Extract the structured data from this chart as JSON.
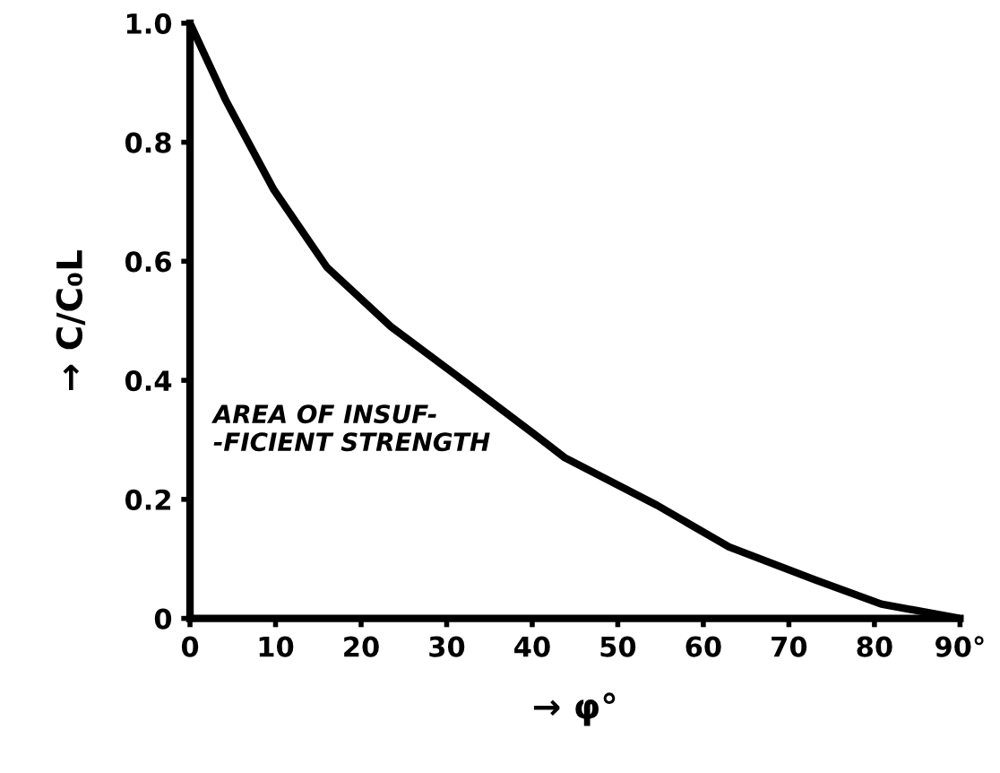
{
  "chart_data": {
    "type": "line",
    "xlabel": "→ φ°",
    "ylabel": "→ C/C₀L",
    "x": [
      0,
      4.2,
      9.8,
      16,
      23.5,
      31.9,
      40.2,
      43.8,
      54.6,
      63,
      73,
      80.8,
      90
    ],
    "series": [
      {
        "color": "#000000",
        "values": [
          1.0,
          0.87,
          0.72,
          0.59,
          0.49,
          0.4,
          0.31,
          0.27,
          0.19,
          0.12,
          0.065,
          0.024,
          0
        ]
      }
    ],
    "xlim": [
      0,
      90
    ],
    "xticks": [
      0,
      10,
      20,
      30,
      40,
      50,
      60,
      70,
      80,
      {
        "value": 90,
        "label": "90°"
      }
    ],
    "ylim": [
      0,
      1.0
    ],
    "yticks": [
      0,
      0.2,
      0.4,
      0.6,
      0.8,
      {
        "value": 1.0,
        "label": "1.0"
      }
    ],
    "annotations": [
      "AREA OF INSUF-\n-FICIENT STRENGTH"
    ],
    "grid": false,
    "legend": false,
    "marker": "none",
    "line_style": "solid"
  }
}
